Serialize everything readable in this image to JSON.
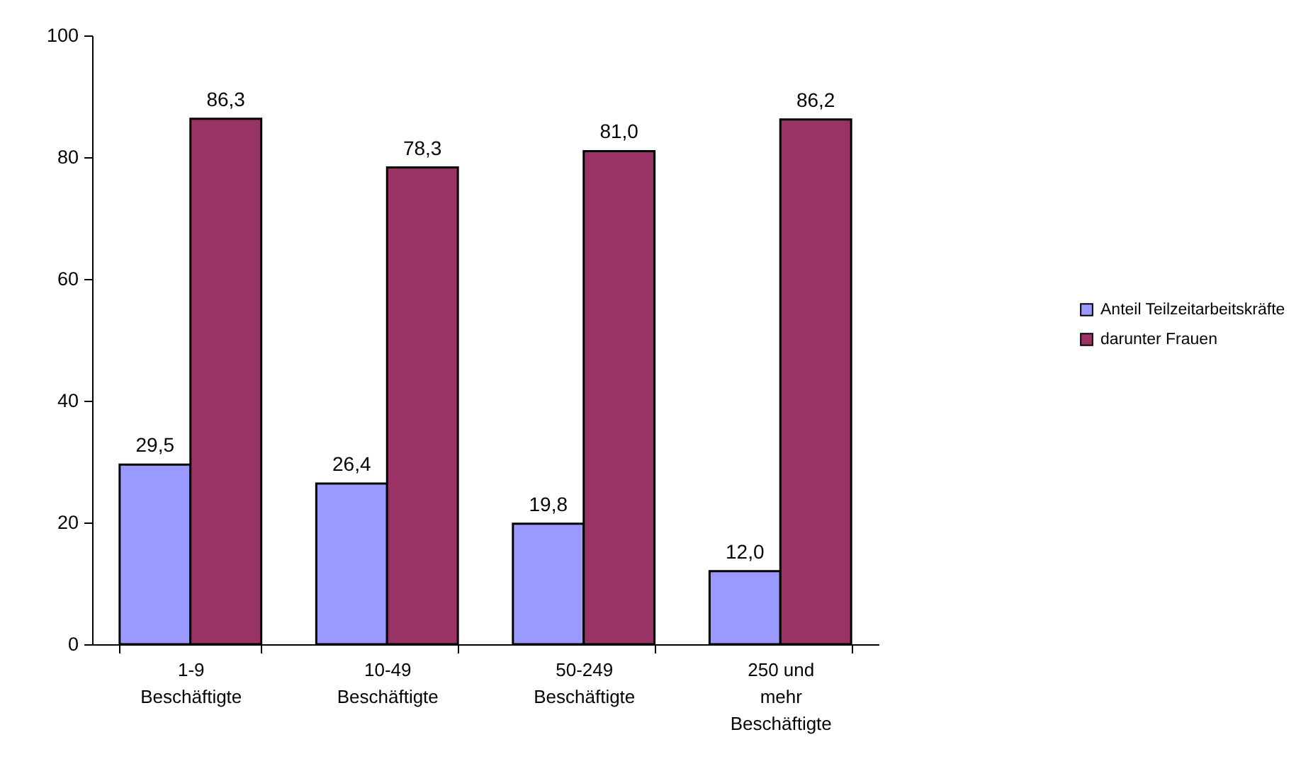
{
  "chart_data": {
    "type": "bar",
    "categories": [
      "1-9\nBeschäftigte",
      "10-49\nBeschäftigte",
      "50-249\nBeschäftigte",
      "250 und\nmehr\nBeschäftigte"
    ],
    "series": [
      {
        "name": "Anteil Teilzeitarbeitskräfte",
        "color": "#9999ff",
        "values": [
          29.5,
          26.4,
          19.8,
          12.0
        ],
        "value_labels": [
          "29,5",
          "26,4",
          "19,8",
          "12,0"
        ]
      },
      {
        "name": "darunter Frauen",
        "color": "#993366",
        "values": [
          86.3,
          78.3,
          81.0,
          86.2
        ],
        "value_labels": [
          "86,3",
          "78,3",
          "81,0",
          "86,2"
        ]
      }
    ],
    "ylim": [
      0,
      100
    ],
    "yticks": [
      0,
      20,
      40,
      60,
      80,
      100
    ],
    "grid": false,
    "legend": "right"
  }
}
